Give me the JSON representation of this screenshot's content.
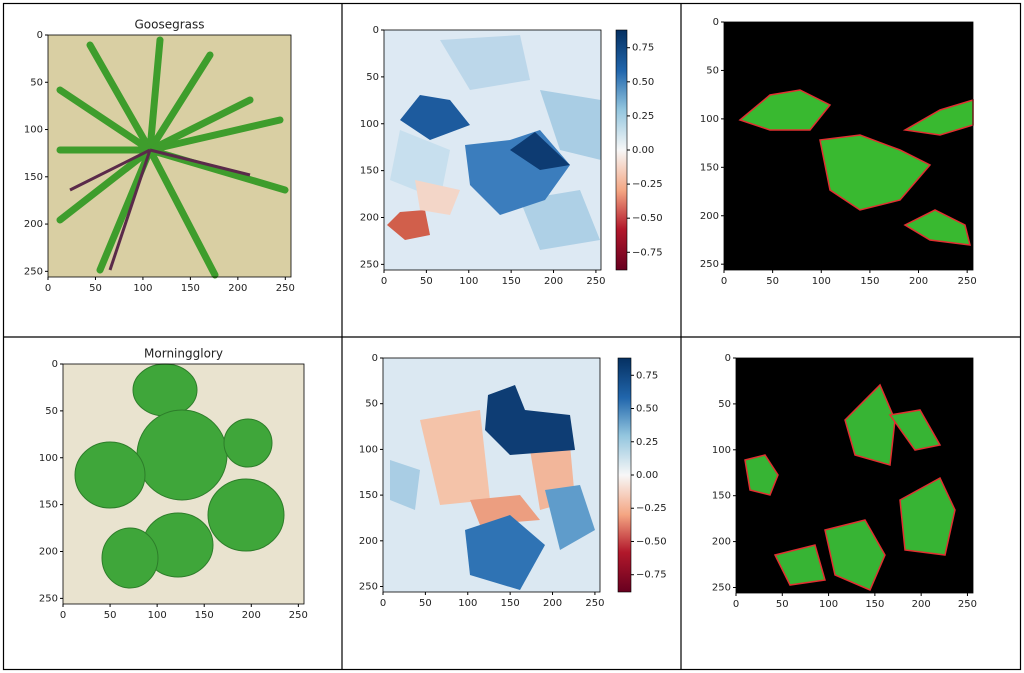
{
  "chart_data": [
    {
      "type": "image",
      "title": "Goosegrass",
      "xlim": [
        0,
        256
      ],
      "ylim": [
        0,
        256
      ],
      "y_inverted": true,
      "xticks": [
        0,
        50,
        100,
        150,
        200,
        250
      ],
      "yticks": [
        0,
        50,
        100,
        150,
        200,
        250
      ]
    },
    {
      "type": "heatmap",
      "xlim": [
        0,
        256
      ],
      "ylim": [
        0,
        256
      ],
      "y_inverted": true,
      "xticks": [
        0,
        50,
        100,
        150,
        200,
        250
      ],
      "yticks": [
        0,
        50,
        100,
        150,
        200,
        250
      ],
      "colorbar": {
        "lim": [
          -0.88,
          0.88
        ],
        "ticks": [
          {
            "value": -0.75,
            "label": "−0.75"
          },
          {
            "value": -0.5,
            "label": "−0.50"
          },
          {
            "value": -0.25,
            "label": "−0.25"
          },
          {
            "value": 0,
            "label": "0.00"
          },
          {
            "value": 0.25,
            "label": "0.25"
          },
          {
            "value": 0.5,
            "label": "0.50"
          },
          {
            "value": 0.75,
            "label": "0.75"
          }
        ]
      }
    },
    {
      "type": "image",
      "xlim": [
        0,
        256
      ],
      "ylim": [
        0,
        256
      ],
      "y_inverted": true,
      "xticks": [
        0,
        50,
        100,
        150,
        200,
        250
      ],
      "yticks": [
        0,
        50,
        100,
        150,
        200,
        250
      ]
    },
    {
      "type": "image",
      "title": "Morningglory",
      "xlim": [
        0,
        256
      ],
      "ylim": [
        0,
        256
      ],
      "y_inverted": true,
      "xticks": [
        0,
        50,
        100,
        150,
        200,
        250
      ],
      "yticks": [
        0,
        50,
        100,
        150,
        200,
        250
      ]
    },
    {
      "type": "heatmap",
      "xlim": [
        0,
        256
      ],
      "ylim": [
        0,
        256
      ],
      "y_inverted": true,
      "xticks": [
        0,
        50,
        100,
        150,
        200,
        250
      ],
      "yticks": [
        0,
        50,
        100,
        150,
        200,
        250
      ],
      "colorbar": {
        "lim": [
          -0.88,
          0.88
        ],
        "ticks": [
          {
            "value": -0.75,
            "label": "−0.75"
          },
          {
            "value": -0.5,
            "label": "−0.50"
          },
          {
            "value": -0.25,
            "label": "−0.25"
          },
          {
            "value": 0,
            "label": "0.00"
          },
          {
            "value": 0.25,
            "label": "0.25"
          },
          {
            "value": 0.5,
            "label": "0.50"
          },
          {
            "value": 0.75,
            "label": "0.75"
          }
        ]
      }
    },
    {
      "type": "image",
      "xlim": [
        0,
        256
      ],
      "ylim": [
        0,
        256
      ],
      "y_inverted": true,
      "xticks": [
        0,
        50,
        100,
        150,
        200,
        250
      ],
      "yticks": [
        0,
        50,
        100,
        150,
        200,
        250
      ]
    }
  ]
}
